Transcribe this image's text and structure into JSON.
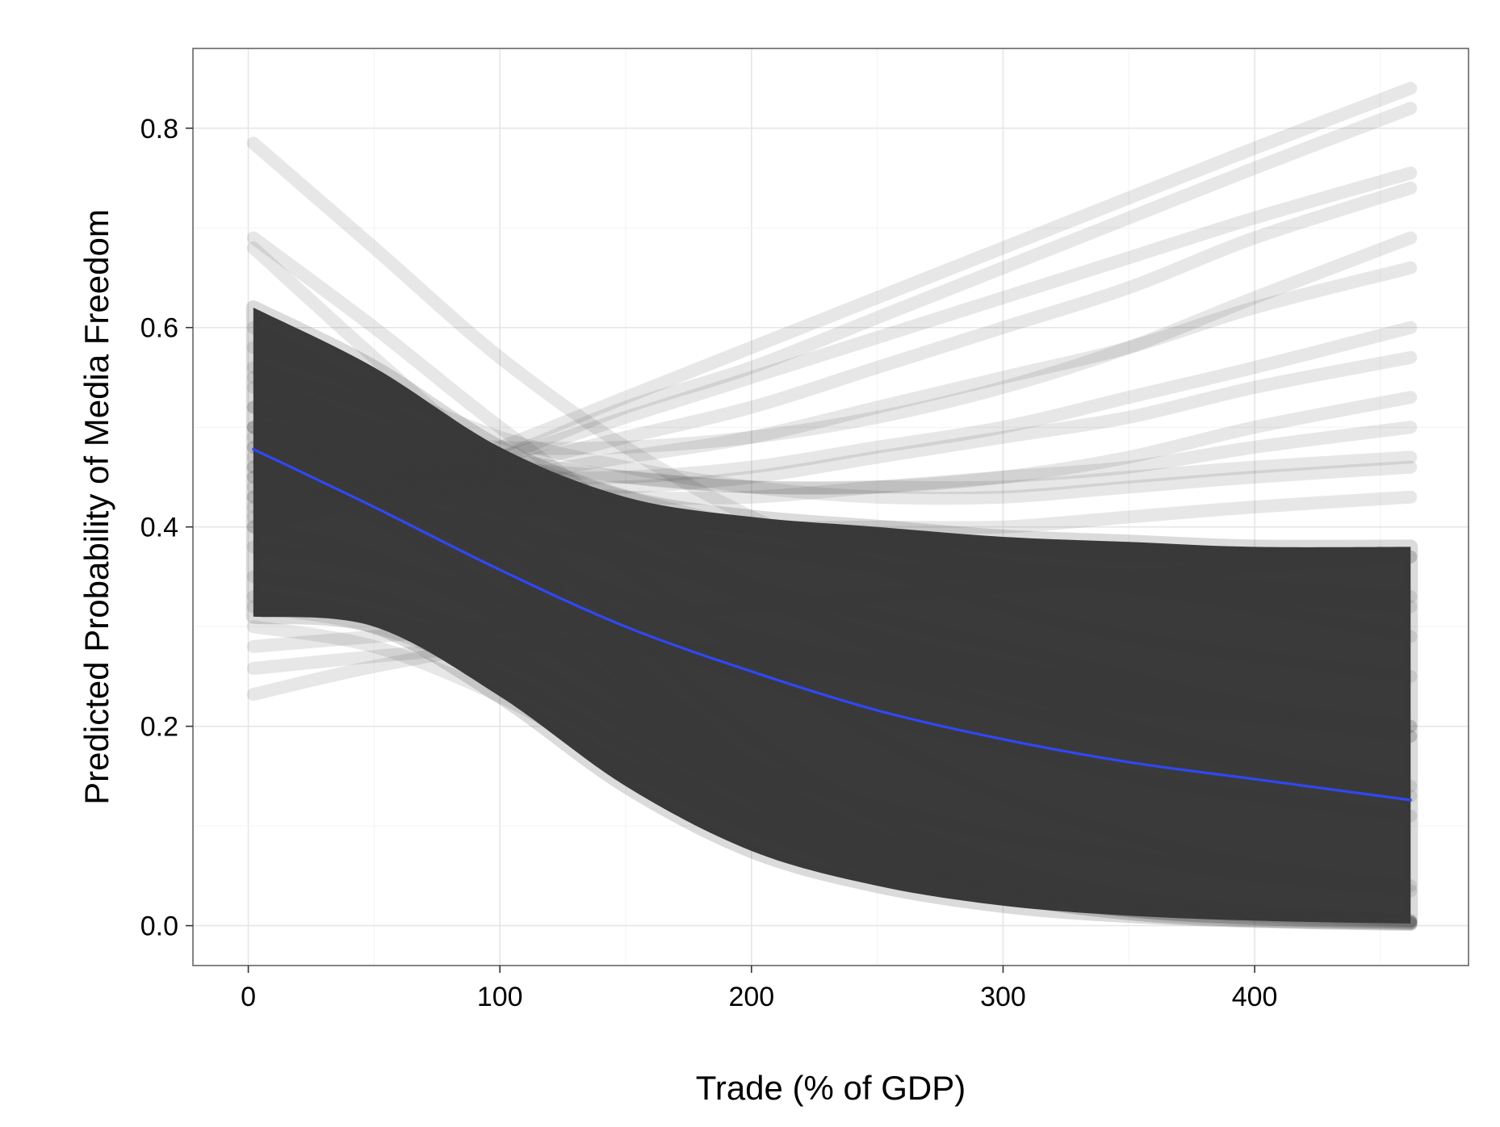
{
  "chart_data": {
    "type": "line",
    "title": "",
    "xlabel": "Trade (% of GDP)",
    "ylabel": "Predicted Probability of Media Freedom",
    "xlim": [
      -22,
      485
    ],
    "ylim": [
      -0.04,
      0.88
    ],
    "x_ticks": [
      0,
      100,
      200,
      300,
      400
    ],
    "x_tick_labels": [
      "0",
      "100",
      "200",
      "300",
      "400"
    ],
    "y_ticks": [
      0.0,
      0.2,
      0.4,
      0.6,
      0.8
    ],
    "y_tick_labels": [
      "0.0",
      "0.2",
      "0.4",
      "0.6",
      "0.8"
    ],
    "grid": true,
    "legend": "none",
    "colors": {
      "simulation": "#3a3a3a",
      "mean": "#3047f5",
      "panel_border": "#666666",
      "grid": "#ebebeb"
    },
    "mean_curve": {
      "x": [
        2,
        50,
        100,
        150,
        200,
        250,
        300,
        350,
        400,
        462
      ],
      "y": [
        0.478,
        0.42,
        0.357,
        0.3,
        0.255,
        0.216,
        0.187,
        0.164,
        0.147,
        0.126
      ]
    },
    "simulation_band": {
      "x": [
        2,
        50,
        100,
        150,
        200,
        250,
        300,
        350,
        400,
        462
      ],
      "lower": [
        0.31,
        0.3,
        0.23,
        0.14,
        0.075,
        0.04,
        0.02,
        0.01,
        0.005,
        0.002
      ],
      "upper": [
        0.62,
        0.56,
        0.48,
        0.43,
        0.41,
        0.4,
        0.39,
        0.385,
        0.38,
        0.38
      ]
    },
    "series": [
      {
        "x": [
          2,
          50,
          100,
          150,
          200,
          250,
          300,
          350,
          400,
          462
        ],
        "y": [
          0.785,
          0.68,
          0.57,
          0.48,
          0.41,
          0.36,
          0.32,
          0.29,
          0.27,
          0.25
        ]
      },
      {
        "x": [
          2,
          50,
          100,
          150,
          200,
          250,
          300,
          350,
          400,
          462
        ],
        "y": [
          0.69,
          0.6,
          0.5,
          0.41,
          0.34,
          0.28,
          0.24,
          0.2,
          0.17,
          0.14
        ]
      },
      {
        "x": [
          2,
          50,
          100,
          150,
          200,
          250,
          300,
          350,
          400,
          462
        ],
        "y": [
          0.68,
          0.57,
          0.46,
          0.36,
          0.27,
          0.19,
          0.13,
          0.09,
          0.06,
          0.04
        ]
      },
      {
        "x": [
          2,
          50,
          100,
          150,
          200,
          250,
          300,
          350,
          400,
          462
        ],
        "y": [
          0.6,
          0.53,
          0.42,
          0.3,
          0.19,
          0.11,
          0.06,
          0.03,
          0.015,
          0.005
        ]
      },
      {
        "x": [
          2,
          50,
          100,
          150,
          200,
          250,
          300,
          350,
          400,
          462
        ],
        "y": [
          0.55,
          0.49,
          0.39,
          0.27,
          0.16,
          0.08,
          0.035,
          0.015,
          0.007,
          0.003
        ]
      },
      {
        "x": [
          2,
          50,
          100,
          150,
          200,
          250,
          300,
          350,
          400,
          462
        ],
        "y": [
          0.5,
          0.45,
          0.36,
          0.25,
          0.14,
          0.07,
          0.03,
          0.012,
          0.005,
          0.002
        ]
      },
      {
        "x": [
          2,
          50,
          100,
          150,
          200,
          250,
          300,
          350,
          400,
          462
        ],
        "y": [
          0.45,
          0.41,
          0.33,
          0.23,
          0.13,
          0.065,
          0.03,
          0.012,
          0.005,
          0.002
        ]
      },
      {
        "x": [
          2,
          50,
          100,
          150,
          200,
          250,
          300,
          350,
          400,
          462
        ],
        "y": [
          0.4,
          0.37,
          0.31,
          0.23,
          0.15,
          0.09,
          0.05,
          0.025,
          0.012,
          0.005
        ]
      },
      {
        "x": [
          2,
          50,
          100,
          150,
          200,
          250,
          300,
          350,
          400,
          462
        ],
        "y": [
          0.35,
          0.33,
          0.28,
          0.2,
          0.13,
          0.075,
          0.04,
          0.02,
          0.01,
          0.004
        ]
      },
      {
        "x": [
          2,
          50,
          100,
          150,
          200,
          250,
          300,
          350,
          400,
          462
        ],
        "y": [
          0.32,
          0.3,
          0.25,
          0.18,
          0.11,
          0.06,
          0.03,
          0.015,
          0.007,
          0.003
        ]
      },
      {
        "x": [
          2,
          50,
          100,
          150,
          200,
          250,
          300,
          350,
          400,
          462
        ],
        "y": [
          0.52,
          0.49,
          0.45,
          0.42,
          0.4,
          0.38,
          0.36,
          0.34,
          0.32,
          0.29
        ]
      },
      {
        "x": [
          2,
          50,
          100,
          150,
          200,
          250,
          300,
          350,
          400,
          462
        ],
        "y": [
          0.48,
          0.46,
          0.44,
          0.43,
          0.43,
          0.44,
          0.45,
          0.46,
          0.48,
          0.5
        ]
      },
      {
        "x": [
          2,
          50,
          100,
          150,
          200,
          250,
          300,
          350,
          400,
          462
        ],
        "y": [
          0.46,
          0.45,
          0.44,
          0.44,
          0.45,
          0.47,
          0.49,
          0.51,
          0.54,
          0.57
        ]
      },
      {
        "x": [
          2,
          50,
          100,
          150,
          200,
          250,
          300,
          350,
          400,
          462
        ],
        "y": [
          0.44,
          0.44,
          0.45,
          0.47,
          0.49,
          0.52,
          0.55,
          0.58,
          0.62,
          0.66
        ]
      },
      {
        "x": [
          2,
          50,
          100,
          150,
          200,
          250,
          300,
          350,
          400,
          462
        ],
        "y": [
          0.42,
          0.44,
          0.46,
          0.49,
          0.52,
          0.56,
          0.6,
          0.64,
          0.69,
          0.74
        ]
      },
      {
        "x": [
          2,
          50,
          100,
          150,
          200,
          250,
          300,
          350,
          400,
          462
        ],
        "y": [
          0.4,
          0.43,
          0.47,
          0.52,
          0.56,
          0.61,
          0.66,
          0.71,
          0.76,
          0.82
        ]
      },
      {
        "x": [
          2,
          50,
          100,
          150,
          200,
          250,
          300,
          350,
          400,
          462
        ],
        "y": [
          0.41,
          0.44,
          0.48,
          0.53,
          0.58,
          0.63,
          0.68,
          0.73,
          0.78,
          0.84
        ]
      },
      {
        "x": [
          2,
          50,
          100,
          150,
          200,
          250,
          300,
          350,
          400,
          462
        ],
        "y": [
          0.43,
          0.45,
          0.47,
          0.51,
          0.55,
          0.59,
          0.63,
          0.67,
          0.71,
          0.755
        ]
      },
      {
        "x": [
          2,
          50,
          100,
          150,
          200,
          250,
          300,
          350,
          400,
          462
        ],
        "y": [
          0.5,
          0.49,
          0.48,
          0.48,
          0.49,
          0.51,
          0.54,
          0.58,
          0.63,
          0.69
        ]
      },
      {
        "x": [
          2,
          50,
          100,
          150,
          200,
          250,
          300,
          350,
          400,
          462
        ],
        "y": [
          0.47,
          0.46,
          0.45,
          0.45,
          0.46,
          0.48,
          0.5,
          0.53,
          0.56,
          0.6
        ]
      },
      {
        "x": [
          2,
          50,
          100,
          150,
          200,
          250,
          300,
          350,
          400,
          462
        ],
        "y": [
          0.5,
          0.48,
          0.46,
          0.45,
          0.44,
          0.44,
          0.44,
          0.45,
          0.46,
          0.47
        ]
      },
      {
        "x": [
          2,
          50,
          100,
          150,
          200,
          250,
          300,
          350,
          400,
          462
        ],
        "y": [
          0.45,
          0.44,
          0.42,
          0.41,
          0.4,
          0.4,
          0.4,
          0.41,
          0.42,
          0.43
        ]
      },
      {
        "x": [
          2,
          50,
          100,
          150,
          200,
          250,
          300,
          350,
          400,
          462
        ],
        "y": [
          0.49,
          0.47,
          0.44,
          0.42,
          0.4,
          0.39,
          0.38,
          0.37,
          0.37,
          0.37
        ]
      },
      {
        "x": [
          2,
          50,
          100,
          150,
          200,
          250,
          300,
          350,
          400,
          462
        ],
        "y": [
          0.52,
          0.5,
          0.47,
          0.45,
          0.44,
          0.44,
          0.45,
          0.47,
          0.5,
          0.53
        ]
      },
      {
        "x": [
          2,
          50,
          100,
          150,
          200,
          250,
          300,
          350,
          400,
          462
        ],
        "y": [
          0.48,
          0.46,
          0.43,
          0.4,
          0.38,
          0.36,
          0.35,
          0.34,
          0.33,
          0.32
        ]
      },
      {
        "x": [
          2,
          50,
          100,
          150,
          200,
          250,
          300,
          350,
          400,
          462
        ],
        "y": [
          0.43,
          0.42,
          0.4,
          0.37,
          0.34,
          0.31,
          0.28,
          0.25,
          0.22,
          0.19
        ]
      },
      {
        "x": [
          2,
          50,
          100,
          150,
          200,
          250,
          300,
          350,
          400,
          462
        ],
        "y": [
          0.56,
          0.52,
          0.47,
          0.43,
          0.4,
          0.38,
          0.36,
          0.35,
          0.34,
          0.33
        ]
      },
      {
        "x": [
          2,
          50,
          100,
          150,
          200,
          250,
          300,
          350,
          400,
          462
        ],
        "y": [
          0.28,
          0.29,
          0.3,
          0.31,
          0.32,
          0.33,
          0.34,
          0.35,
          0.36,
          0.37
        ]
      },
      {
        "x": [
          2,
          50,
          100,
          150,
          200,
          250,
          300,
          350,
          400,
          462
        ],
        "y": [
          0.258,
          0.27,
          0.28,
          0.28,
          0.275,
          0.265,
          0.25,
          0.23,
          0.21,
          0.19
        ]
      },
      {
        "x": [
          2,
          50,
          100,
          150,
          200,
          250,
          300,
          350,
          400,
          462
        ],
        "y": [
          0.232,
          0.26,
          0.28,
          0.28,
          0.27,
          0.25,
          0.22,
          0.19,
          0.16,
          0.13
        ]
      },
      {
        "x": [
          2,
          50,
          100,
          150,
          200,
          250,
          300,
          350,
          400,
          462
        ],
        "y": [
          0.3,
          0.28,
          0.23,
          0.16,
          0.1,
          0.055,
          0.03,
          0.015,
          0.008,
          0.004
        ]
      },
      {
        "x": [
          2,
          50,
          100,
          150,
          200,
          250,
          300,
          350,
          400,
          462
        ],
        "y": [
          0.33,
          0.31,
          0.27,
          0.21,
          0.16,
          0.12,
          0.09,
          0.07,
          0.05,
          0.035
        ]
      },
      {
        "x": [
          2,
          50,
          100,
          150,
          200,
          250,
          300,
          350,
          400,
          462
        ],
        "y": [
          0.38,
          0.36,
          0.33,
          0.29,
          0.25,
          0.21,
          0.18,
          0.15,
          0.13,
          0.11
        ]
      },
      {
        "x": [
          2,
          50,
          100,
          150,
          200,
          250,
          300,
          350,
          400,
          462
        ],
        "y": [
          0.54,
          0.5,
          0.44,
          0.38,
          0.33,
          0.29,
          0.26,
          0.24,
          0.22,
          0.2
        ]
      },
      {
        "x": [
          2,
          50,
          100,
          150,
          200,
          250,
          300,
          350,
          400,
          462
        ],
        "y": [
          0.46,
          0.43,
          0.38,
          0.33,
          0.29,
          0.26,
          0.24,
          0.22,
          0.21,
          0.2
        ]
      },
      {
        "x": [
          2,
          50,
          100,
          150,
          200,
          250,
          300,
          350,
          400,
          462
        ],
        "y": [
          0.58,
          0.54,
          0.49,
          0.46,
          0.44,
          0.43,
          0.43,
          0.44,
          0.45,
          0.46
        ]
      }
    ]
  }
}
